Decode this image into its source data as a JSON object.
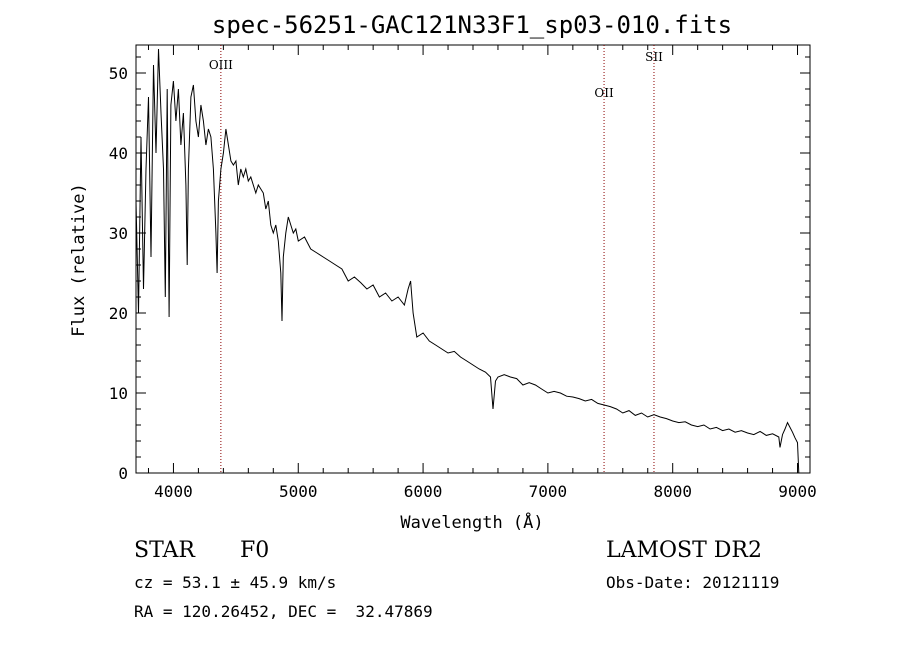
{
  "chart_data": {
    "type": "line",
    "title": "spec-56251-GAC121N33F1_sp03-010.fits",
    "xlabel": "Wavelength (Å)",
    "ylabel": "Flux (relative)",
    "xlim": [
      3700,
      9100
    ],
    "ylim": [
      0,
      53.5
    ],
    "x_ticks": [
      4000,
      5000,
      6000,
      7000,
      8000,
      9000
    ],
    "y_ticks": [
      0,
      10,
      20,
      30,
      40,
      50
    ],
    "grid": false,
    "series": [
      {
        "name": "spectrum",
        "points": [
          [
            3700,
            34
          ],
          [
            3720,
            20
          ],
          [
            3740,
            42
          ],
          [
            3760,
            23
          ],
          [
            3780,
            38
          ],
          [
            3800,
            47
          ],
          [
            3820,
            27
          ],
          [
            3840,
            51
          ],
          [
            3860,
            40
          ],
          [
            3880,
            53
          ],
          [
            3900,
            45
          ],
          [
            3920,
            38
          ],
          [
            3935,
            22
          ],
          [
            3950,
            48
          ],
          [
            3965,
            19.5
          ],
          [
            3980,
            46
          ],
          [
            4000,
            49
          ],
          [
            4020,
            44
          ],
          [
            4040,
            48
          ],
          [
            4060,
            41
          ],
          [
            4080,
            45
          ],
          [
            4100,
            36
          ],
          [
            4110,
            26
          ],
          [
            4120,
            38
          ],
          [
            4140,
            47
          ],
          [
            4160,
            48.5
          ],
          [
            4180,
            44
          ],
          [
            4200,
            42
          ],
          [
            4220,
            46
          ],
          [
            4240,
            44
          ],
          [
            4260,
            41
          ],
          [
            4280,
            43
          ],
          [
            4300,
            42
          ],
          [
            4320,
            38
          ],
          [
            4340,
            30
          ],
          [
            4350,
            25
          ],
          [
            4360,
            34
          ],
          [
            4380,
            38
          ],
          [
            4400,
            40
          ],
          [
            4420,
            43
          ],
          [
            4440,
            41
          ],
          [
            4460,
            39
          ],
          [
            4480,
            38.5
          ],
          [
            4500,
            39
          ],
          [
            4520,
            36
          ],
          [
            4540,
            38
          ],
          [
            4560,
            37
          ],
          [
            4580,
            38
          ],
          [
            4600,
            36.5
          ],
          [
            4620,
            37
          ],
          [
            4640,
            36
          ],
          [
            4660,
            35
          ],
          [
            4680,
            36
          ],
          [
            4700,
            35.5
          ],
          [
            4720,
            35
          ],
          [
            4740,
            33
          ],
          [
            4760,
            34
          ],
          [
            4780,
            31
          ],
          [
            4800,
            30
          ],
          [
            4820,
            31
          ],
          [
            4840,
            29
          ],
          [
            4860,
            25
          ],
          [
            4870,
            19
          ],
          [
            4880,
            27
          ],
          [
            4900,
            30
          ],
          [
            4920,
            32
          ],
          [
            4940,
            31
          ],
          [
            4960,
            30
          ],
          [
            4980,
            30.5
          ],
          [
            5000,
            29
          ],
          [
            5050,
            29.5
          ],
          [
            5100,
            28
          ],
          [
            5150,
            27.5
          ],
          [
            5200,
            27
          ],
          [
            5250,
            26.5
          ],
          [
            5300,
            26
          ],
          [
            5350,
            25.5
          ],
          [
            5400,
            24
          ],
          [
            5450,
            24.5
          ],
          [
            5500,
            23.8
          ],
          [
            5550,
            23
          ],
          [
            5600,
            23.5
          ],
          [
            5650,
            22
          ],
          [
            5700,
            22.5
          ],
          [
            5750,
            21.5
          ],
          [
            5800,
            22
          ],
          [
            5850,
            21
          ],
          [
            5880,
            23
          ],
          [
            5900,
            24
          ],
          [
            5920,
            20
          ],
          [
            5950,
            17
          ],
          [
            6000,
            17.5
          ],
          [
            6050,
            16.5
          ],
          [
            6100,
            16
          ],
          [
            6150,
            15.5
          ],
          [
            6200,
            15
          ],
          [
            6250,
            15.2
          ],
          [
            6300,
            14.5
          ],
          [
            6350,
            14
          ],
          [
            6400,
            13.5
          ],
          [
            6450,
            13
          ],
          [
            6500,
            12.6
          ],
          [
            6540,
            12
          ],
          [
            6560,
            8
          ],
          [
            6580,
            11.5
          ],
          [
            6600,
            12
          ],
          [
            6650,
            12.3
          ],
          [
            6700,
            12
          ],
          [
            6750,
            11.8
          ],
          [
            6800,
            11
          ],
          [
            6850,
            11.3
          ],
          [
            6900,
            11
          ],
          [
            6950,
            10.5
          ],
          [
            7000,
            10
          ],
          [
            7050,
            10.2
          ],
          [
            7100,
            10
          ],
          [
            7150,
            9.6
          ],
          [
            7200,
            9.5
          ],
          [
            7250,
            9.3
          ],
          [
            7300,
            9
          ],
          [
            7350,
            9.2
          ],
          [
            7400,
            8.7
          ],
          [
            7450,
            8.5
          ],
          [
            7500,
            8.3
          ],
          [
            7550,
            8
          ],
          [
            7600,
            7.5
          ],
          [
            7650,
            7.8
          ],
          [
            7700,
            7.2
          ],
          [
            7750,
            7.5
          ],
          [
            7800,
            7
          ],
          [
            7850,
            7.3
          ],
          [
            7900,
            7
          ],
          [
            7950,
            6.8
          ],
          [
            8000,
            6.5
          ],
          [
            8050,
            6.3
          ],
          [
            8100,
            6.4
          ],
          [
            8150,
            6
          ],
          [
            8200,
            5.8
          ],
          [
            8250,
            6
          ],
          [
            8300,
            5.5
          ],
          [
            8350,
            5.7
          ],
          [
            8400,
            5.3
          ],
          [
            8450,
            5.5
          ],
          [
            8500,
            5.1
          ],
          [
            8550,
            5.3
          ],
          [
            8600,
            5
          ],
          [
            8650,
            4.8
          ],
          [
            8700,
            5.2
          ],
          [
            8750,
            4.7
          ],
          [
            8800,
            4.9
          ],
          [
            8850,
            4.5
          ],
          [
            8860,
            3.2
          ],
          [
            8880,
            4.8
          ],
          [
            8900,
            5.5
          ],
          [
            8920,
            6.3
          ],
          [
            8940,
            5.7
          ],
          [
            8960,
            5.1
          ],
          [
            8980,
            4.4
          ],
          [
            9000,
            3.8
          ],
          [
            9010,
            0
          ]
        ]
      }
    ],
    "lines": [
      {
        "label": "OIII",
        "x": 4380
      },
      {
        "label": "OII",
        "x": 7450
      },
      {
        "label": "SII",
        "x": 7850
      }
    ],
    "line_label_values": [
      50.5,
      47,
      51.5
    ],
    "line_color": "#8b0000"
  },
  "info": {
    "object_class": "STAR",
    "subclass": "F0",
    "survey": "LAMOST DR2",
    "redshift": "cz = 53.1 ± 45.9 km/s",
    "obs_date": "Obs-Date: 20121119",
    "coords": "RA = 120.26452, DEC =  32.47869"
  }
}
